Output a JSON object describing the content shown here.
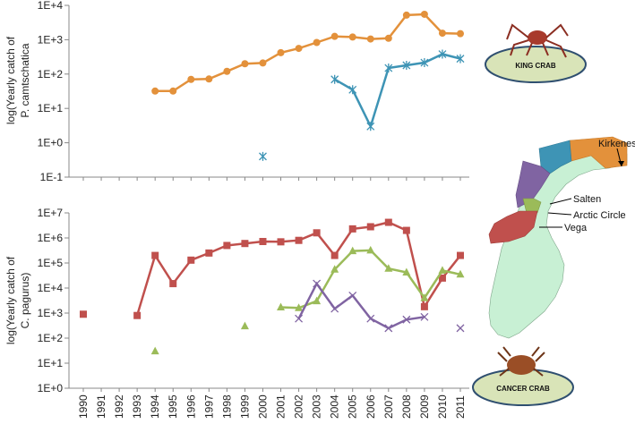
{
  "chart_data": [
    {
      "type": "line",
      "yscale": "log",
      "ylim": [
        0.1,
        10000
      ],
      "ytick_labels": [
        "1E-1",
        "1E+0",
        "1E+1",
        "1E+2",
        "1E+3",
        "1E+4"
      ],
      "ylabel_lines": [
        "log(Yearly catch of",
        "P. camtschatica"
      ],
      "grid": false,
      "series": [
        {
          "color": "#E3913B",
          "marker": "circle",
          "points": [
            [
              1994,
              32
            ],
            [
              1995,
              32
            ],
            [
              1996,
              70
            ],
            [
              1997,
              72
            ],
            [
              1998,
              120
            ],
            [
              1999,
              200
            ],
            [
              2000,
              210
            ],
            [
              2001,
              420
            ],
            [
              2002,
              560
            ],
            [
              2003,
              830
            ],
            [
              2004,
              1250
            ],
            [
              2005,
              1200
            ],
            [
              2006,
              1050
            ],
            [
              2007,
              1100
            ],
            [
              2008,
              5200
            ],
            [
              2009,
              5500
            ],
            [
              2010,
              1550
            ],
            [
              2011,
              1500
            ]
          ]
        },
        {
          "color": "#3E94B5",
          "marker": "star",
          "points": [
            [
              2004,
              70
            ],
            [
              2005,
              35
            ],
            [
              2006,
              3
            ],
            [
              2007,
              150
            ],
            [
              2008,
              180
            ],
            [
              2009,
              215
            ],
            [
              2010,
              380
            ],
            [
              2011,
              280
            ]
          ],
          "isolated_points": [
            [
              2000,
              0.4
            ]
          ]
        }
      ],
      "badge": {
        "label": "KING CRAB",
        "icon": "king-crab-icon"
      }
    },
    {
      "type": "line",
      "yscale": "log",
      "ylim": [
        1,
        10000000
      ],
      "ytick_labels": [
        "1E+0",
        "1E+1",
        "1E+2",
        "1E+3",
        "1E+4",
        "1E+5",
        "1E+6",
        "1E+7"
      ],
      "ylabel_lines": [
        "log(Yearly catch of",
        "C. pagurus)"
      ],
      "x_categories": [
        "1990",
        "1991",
        "1992",
        "1993",
        "1994",
        "1995",
        "1996",
        "1997",
        "1998",
        "1999",
        "2000",
        "2001",
        "2002",
        "2003",
        "2004",
        "2005",
        "2006",
        "2007",
        "2008",
        "2009",
        "2010",
        "2011"
      ],
      "grid": false,
      "series": [
        {
          "color": "#C0504D",
          "marker": "square",
          "segments": [
            [
              [
                1993,
                800
              ],
              [
                1994,
                200000
              ],
              [
                1995,
                15000
              ],
              [
                1996,
                130000
              ],
              [
                1997,
                250000
              ],
              [
                1998,
                500000
              ],
              [
                1999,
                600000
              ],
              [
                2000,
                720000
              ],
              [
                2001,
                700000
              ],
              [
                2002,
                800000
              ],
              [
                2003,
                1600000
              ],
              [
                2004,
                200000
              ],
              [
                2005,
                2300000
              ],
              [
                2006,
                2800000
              ],
              [
                2007,
                4200000
              ],
              [
                2008,
                2000000
              ],
              [
                2009,
                1800
              ],
              [
                2010,
                25000
              ],
              [
                2011,
                200000
              ]
            ]
          ],
          "isolated_points": [
            [
              1990,
              900
            ]
          ]
        },
        {
          "color": "#9BBB59",
          "marker": "triangle",
          "segments": [
            [
              [
                2001,
                1700
              ],
              [
                2002,
                1600
              ],
              [
                2003,
                3000
              ],
              [
                2004,
                55000
              ],
              [
                2005,
                300000
              ],
              [
                2006,
                320000
              ],
              [
                2007,
                60000
              ],
              [
                2008,
                42000
              ],
              [
                2009,
                4000
              ],
              [
                2010,
                50000
              ],
              [
                2011,
                35000
              ]
            ]
          ],
          "isolated_points": [
            [
              1994,
              30
            ],
            [
              1999,
              300
            ]
          ]
        },
        {
          "color": "#8064A2",
          "marker": "x",
          "segments": [
            [
              [
                2002,
                600
              ],
              [
                2003,
                15000
              ],
              [
                2004,
                1500
              ],
              [
                2005,
                5000
              ],
              [
                2006,
                600
              ],
              [
                2007,
                250
              ],
              [
                2008,
                550
              ],
              [
                2009,
                700
              ]
            ]
          ],
          "isolated_points": [
            [
              2011,
              250
            ]
          ]
        }
      ],
      "badge": {
        "label": "CANCER CRAB",
        "icon": "cancer-crab-icon"
      }
    }
  ],
  "map": {
    "icon": "norway-coast-map",
    "labels": [
      "Kirkenes",
      "Salten",
      "Arctic Circle",
      "Vega"
    ],
    "region_colors": [
      "#E3913B",
      "#3E94B5",
      "#8064A2",
      "#9BBB59",
      "#C0504D"
    ],
    "land_color": "#C8F0D4"
  },
  "colors": {
    "axis": "#888888",
    "badge_fill": "#D9E4B8",
    "badge_stroke": "#2F4F70"
  }
}
